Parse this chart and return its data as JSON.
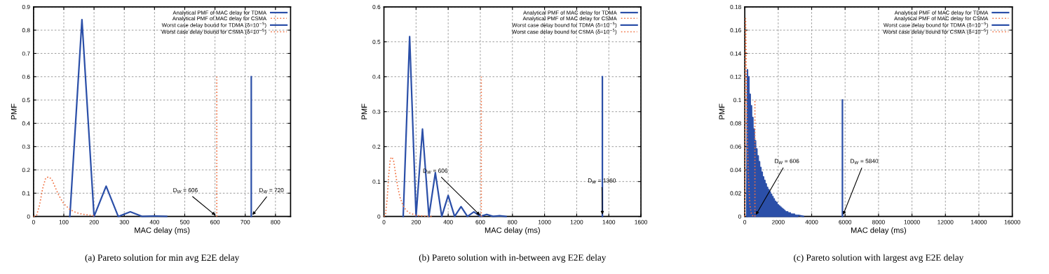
{
  "chart_data": [
    {
      "type": "line",
      "title": "(a) Pareto solution for min avg E2E delay",
      "xlabel": "MAC delay (ms)",
      "ylabel": "PMF",
      "xlim": [
        0,
        850
      ],
      "xticks": [
        0,
        100,
        200,
        300,
        400,
        500,
        600,
        700,
        800
      ],
      "ylim": [
        0,
        0.9
      ],
      "yticks": [
        0,
        0.1,
        0.2,
        0.3,
        0.4,
        0.5,
        0.6,
        0.7,
        0.8,
        0.9
      ],
      "grid": true,
      "legend": "top right",
      "series": [
        {
          "name": "Analytical PMF of MAC delay for TDMA",
          "color": "#2b4fa8",
          "line_style": "solid",
          "x": [
            120,
            160,
            200,
            240,
            280,
            320,
            360,
            400,
            440
          ],
          "values": [
            0,
            0.845,
            0,
            0.13,
            0,
            0.02,
            0,
            0.002,
            0
          ]
        },
        {
          "name": "Analytical PMF of MAC delay for CSMA",
          "color": "#f07040",
          "line_style": "dotted",
          "x": [
            0,
            10,
            20,
            30,
            40,
            50,
            60,
            70,
            80,
            90,
            100,
            120,
            140,
            160,
            200
          ],
          "values": [
            0,
            0.005,
            0.05,
            0.12,
            0.165,
            0.17,
            0.16,
            0.13,
            0.1,
            0.075,
            0.055,
            0.03,
            0.017,
            0.01,
            0.003
          ]
        },
        {
          "name": "Worst case delay bound for TDMA (δ=10$^{−5}$)",
          "color": "#2b4fa8",
          "line_style": "solid",
          "x": [
            720,
            720
          ],
          "values": [
            0,
            0.6
          ]
        },
        {
          "name": "Worst case delay bound for CSMA (δ=10$^{−5}$)",
          "color": "#f07040",
          "line_style": "dotted",
          "x": [
            606,
            606
          ],
          "values": [
            0,
            0.6
          ]
        }
      ],
      "annotations": [
        {
          "text": "D$_{W}$ = 606",
          "x": 606,
          "y": 0
        },
        {
          "text": "D$_{W}$ = 720",
          "x": 720,
          "y": 0
        }
      ]
    },
    {
      "type": "line",
      "title": "(b) Pareto solution with in-between avg E2E delay",
      "xlabel": "MAC delay (ms)",
      "ylabel": "PMF",
      "xlim": [
        0,
        1600
      ],
      "xticks": [
        0,
        200,
        400,
        600,
        800,
        1000,
        1200,
        1400,
        1600
      ],
      "ylim": [
        0,
        0.6
      ],
      "yticks": [
        0,
        0.1,
        0.2,
        0.3,
        0.4,
        0.5,
        0.6
      ],
      "grid": true,
      "legend": "top right",
      "series": [
        {
          "name": "Analytical PMF of MAC delay for TDMA",
          "color": "#2b4fa8",
          "line_style": "solid",
          "x": [
            120,
            160,
            200,
            240,
            280,
            320,
            360,
            400,
            440,
            480,
            520,
            560,
            600,
            640,
            680,
            720,
            760
          ],
          "values": [
            0,
            0.515,
            0,
            0.25,
            0,
            0.125,
            0,
            0.06,
            0,
            0.028,
            0,
            0.013,
            0,
            0.006,
            0,
            0.002,
            0
          ]
        },
        {
          "name": "Analytical PMF of MAC delay for CSMA",
          "color": "#f07040",
          "line_style": "dotted",
          "x": [
            0,
            10,
            20,
            30,
            40,
            50,
            60,
            70,
            80,
            90,
            100,
            120,
            140,
            160,
            200,
            250,
            300
          ],
          "values": [
            0,
            0.005,
            0.05,
            0.12,
            0.165,
            0.17,
            0.16,
            0.13,
            0.1,
            0.075,
            0.055,
            0.03,
            0.017,
            0.01,
            0.003,
            0.001,
            0
          ]
        },
        {
          "name": "Worst case delay bound for TDMA (δ=10$^{−5}$)",
          "color": "#2b4fa8",
          "line_style": "solid",
          "x": [
            1360,
            1360
          ],
          "values": [
            0,
            0.4
          ]
        },
        {
          "name": "Worst case delay bound for CSMA (δ=10$^{−5}$)",
          "color": "#f07040",
          "line_style": "dotted",
          "x": [
            606,
            606
          ],
          "values": [
            0,
            0.4
          ]
        }
      ],
      "annotations": [
        {
          "text": "D$_{W}$ = 606",
          "x": 606,
          "y": 0
        },
        {
          "text": "D$_{W}$ = 1360",
          "x": 1360,
          "y": 0
        }
      ]
    },
    {
      "type": "line",
      "title": "(c) Pareto solution with largest avg E2E delay",
      "xlabel": "MAC delay (ms)",
      "ylabel": "PMF",
      "xlim": [
        0,
        16000
      ],
      "xticks": [
        0,
        2000,
        4000,
        6000,
        8000,
        10000,
        12000,
        14000,
        16000
      ],
      "ylim": [
        0,
        0.18
      ],
      "yticks": [
        0,
        0.02,
        0.04,
        0.06,
        0.08,
        0.1,
        0.12,
        0.14,
        0.16,
        0.18
      ],
      "grid": true,
      "legend": "top right",
      "series": [
        {
          "name": "Analytical PMF of MAC delay for TDMA",
          "color": "#2b4fa8",
          "line_style": "solid",
          "x": [
            120,
            160,
            200,
            240,
            280,
            320,
            360,
            400,
            440,
            480,
            520,
            560,
            600,
            640,
            680,
            720,
            760,
            800,
            840,
            880,
            920,
            960,
            1000,
            1040,
            1080,
            1120,
            1160,
            1200,
            1240,
            1280,
            1320,
            1360,
            1400,
            1440,
            1480,
            1520,
            1560,
            1600,
            1640,
            1680,
            1720,
            1760,
            1800,
            1840,
            1880,
            1920,
            1960,
            2000,
            2040,
            2080,
            2120,
            2160,
            2200,
            2240,
            2280,
            2320,
            2360,
            2400,
            2440,
            2480,
            2520,
            2560,
            2600,
            2640,
            2680,
            2720,
            2760,
            2800,
            2840,
            2880,
            2920,
            2960,
            3000,
            3040,
            3080,
            3120,
            3160,
            3200,
            3500
          ],
          "values": [
            0,
            0.126,
            0,
            0.12,
            0,
            0.105,
            0,
            0.095,
            0,
            0.085,
            0,
            0.075,
            0,
            0.065,
            0,
            0.058,
            0,
            0.052,
            0,
            0.047,
            0,
            0.042,
            0,
            0.038,
            0,
            0.034,
            0,
            0.031,
            0,
            0.028,
            0,
            0.025,
            0,
            0.023,
            0,
            0.021,
            0,
            0.019,
            0,
            0.017,
            0,
            0.015,
            0,
            0.013,
            0,
            0.012,
            0,
            0.01,
            0,
            0.009,
            0,
            0.008,
            0,
            0.007,
            0,
            0.006,
            0,
            0.005,
            0,
            0.004,
            0,
            0.004,
            0,
            0.003,
            0,
            0.003,
            0,
            0.002,
            0,
            0.002,
            0,
            0.002,
            0,
            0.001,
            0,
            0.001,
            0,
            0.001,
            0
          ]
        },
        {
          "name": "Analytical PMF of MAC delay for CSMA",
          "color": "#f07040",
          "line_style": "dotted",
          "x": [
            0,
            20,
            50,
            100,
            150,
            200,
            300,
            400,
            500
          ],
          "values": [
            0,
            0.05,
            0.17,
            0.12,
            0.07,
            0.04,
            0.01,
            0.002,
            0
          ]
        },
        {
          "name": "Worst case delay bound for TDMA (δ=10$^{−5}$)",
          "color": "#2b4fa8",
          "line_style": "solid",
          "x": [
            5840,
            5840
          ],
          "values": [
            0,
            0.1
          ]
        },
        {
          "name": "Worst case delay bound for CSMA (δ=10$^{−5}$)",
          "color": "#f07040",
          "line_style": "dotted",
          "x": [
            606,
            606
          ],
          "values": [
            0,
            0.1
          ]
        }
      ],
      "annotations": [
        {
          "text": "D$_{W}$ = 606",
          "x": 606,
          "y": 0
        },
        {
          "text": "D$_{W}$ = 5840",
          "x": 5840,
          "y": 0
        }
      ]
    }
  ]
}
